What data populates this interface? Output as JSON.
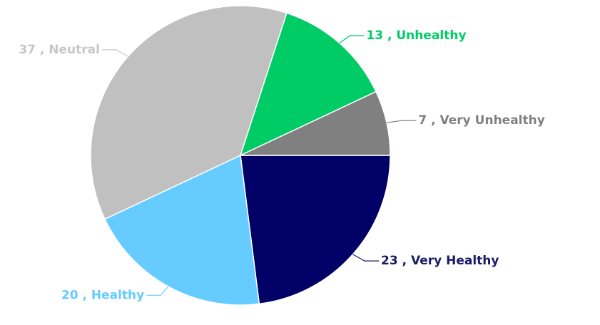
{
  "chart_data": {
    "type": "pie",
    "values": [
      23,
      20,
      37,
      13,
      7
    ],
    "value_labels": [
      "23 , Very Healthy",
      "20 , Healthy",
      "37 , Neutral",
      "13 , Unhealthy",
      "7 , Very Unhealthy"
    ],
    "colors": [
      "#000066",
      "#66ccff",
      "#c0c0c0",
      "#00cc66",
      "#808080"
    ],
    "label_colors": [
      "#1a1a66",
      "#66ccff",
      "#c8c8c8",
      "#00cc66",
      "#808080"
    ]
  }
}
